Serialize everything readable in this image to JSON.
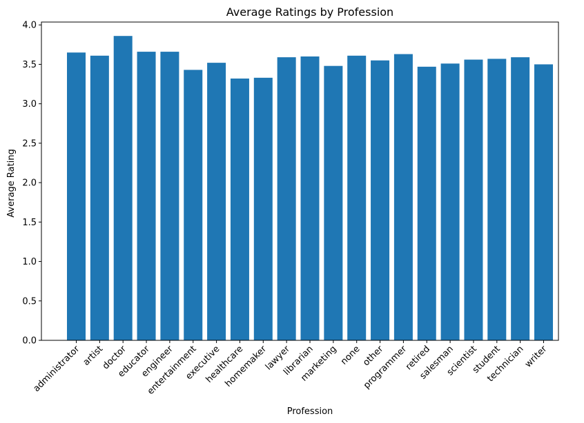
{
  "chart_data": {
    "type": "bar",
    "title": "Average Ratings by Profession",
    "xlabel": "Profession",
    "ylabel": "Average Rating",
    "ylim": [
      0.0,
      4.0
    ],
    "yticks": [
      "0.0",
      "0.5",
      "1.0",
      "1.5",
      "2.0",
      "2.5",
      "3.0",
      "3.5",
      "4.0"
    ],
    "ytick_values": [
      0.0,
      0.5,
      1.0,
      1.5,
      2.0,
      2.5,
      3.0,
      3.5,
      4.0
    ],
    "grid": false,
    "bar_color": "#1f77b4",
    "categories": [
      "administrator",
      "artist",
      "doctor",
      "educator",
      "engineer",
      "entertainment",
      "executive",
      "healthcare",
      "homemaker",
      "lawyer",
      "librarian",
      "marketing",
      "none",
      "other",
      "programmer",
      "retired",
      "salesman",
      "scientist",
      "student",
      "technician",
      "writer"
    ],
    "values": [
      3.65,
      3.61,
      3.86,
      3.66,
      3.66,
      3.43,
      3.52,
      3.32,
      3.33,
      3.59,
      3.6,
      3.48,
      3.61,
      3.55,
      3.63,
      3.47,
      3.51,
      3.56,
      3.57,
      3.59,
      3.5
    ]
  }
}
